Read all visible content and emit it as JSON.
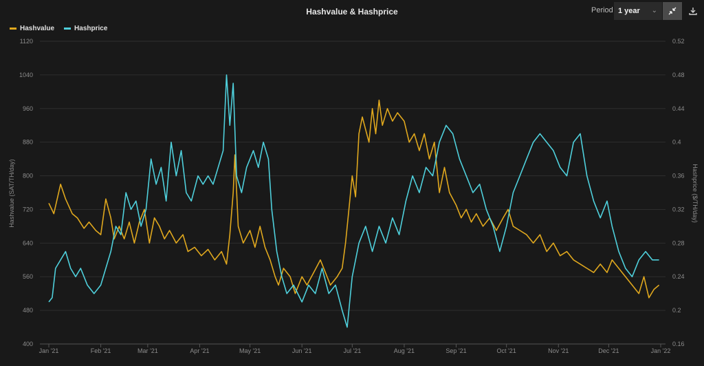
{
  "header": {
    "title": "Hashvalue & Hashprice",
    "period_label": "Period",
    "period_value": "1 year"
  },
  "icons": {
    "fit": "collapse-arrows-icon",
    "download": "download-icon"
  },
  "colors": {
    "hashvalue": "#e0a81e",
    "hashprice": "#4fd0dc",
    "background": "#191919",
    "grid": "#2e2e2e"
  },
  "chart_data": {
    "type": "line",
    "x_tick_labels": [
      "Jan '21",
      "Feb '21",
      "Mar '21",
      "Apr '21",
      "May '21",
      "Jun '21",
      "Jul '21",
      "Aug '21",
      "Sep '21",
      "Oct '21",
      "Nov '21",
      "Dec '21",
      "Jan '22"
    ],
    "ylabel_left": "Hashvalue (SAT/TH/day)",
    "ylabel_right": "Hashprice ($/TH/day)",
    "ylim_left": [
      400,
      1120
    ],
    "ylim_right": [
      0.16,
      0.52
    ],
    "yticks_left": [
      "400",
      "480",
      "560",
      "640",
      "720",
      "800",
      "880",
      "960",
      "1040",
      "1120"
    ],
    "yticks_right": [
      "0.16",
      "0.2",
      "0.24",
      "0.28",
      "0.32",
      "0.36",
      "0.4",
      "0.44",
      "0.48",
      "0.52"
    ],
    "legend_position": "top-left",
    "grid": true,
    "series": [
      {
        "name": "Hashvalue",
        "axis": "left",
        "points": [
          [
            "2021-01-01",
            735
          ],
          [
            "2021-01-04",
            710
          ],
          [
            "2021-01-08",
            780
          ],
          [
            "2021-01-11",
            745
          ],
          [
            "2021-01-15",
            710
          ],
          [
            "2021-01-18",
            700
          ],
          [
            "2021-01-22",
            675
          ],
          [
            "2021-01-25",
            690
          ],
          [
            "2021-01-29",
            670
          ],
          [
            "2021-02-01",
            660
          ],
          [
            "2021-02-04",
            745
          ],
          [
            "2021-02-07",
            700
          ],
          [
            "2021-02-09",
            650
          ],
          [
            "2021-02-12",
            680
          ],
          [
            "2021-02-15",
            650
          ],
          [
            "2021-02-18",
            690
          ],
          [
            "2021-02-21",
            640
          ],
          [
            "2021-02-24",
            690
          ],
          [
            "2021-02-27",
            720
          ],
          [
            "2021-03-02",
            640
          ],
          [
            "2021-03-05",
            700
          ],
          [
            "2021-03-08",
            680
          ],
          [
            "2021-03-11",
            650
          ],
          [
            "2021-03-14",
            670
          ],
          [
            "2021-03-18",
            640
          ],
          [
            "2021-03-22",
            660
          ],
          [
            "2021-03-25",
            620
          ],
          [
            "2021-03-29",
            630
          ],
          [
            "2021-04-02",
            610
          ],
          [
            "2021-04-06",
            625
          ],
          [
            "2021-04-10",
            600
          ],
          [
            "2021-04-14",
            620
          ],
          [
            "2021-04-17",
            590
          ],
          [
            "2021-04-19",
            660
          ],
          [
            "2021-04-21",
            760
          ],
          [
            "2021-04-22",
            850
          ],
          [
            "2021-04-24",
            680
          ],
          [
            "2021-04-27",
            640
          ],
          [
            "2021-05-01",
            670
          ],
          [
            "2021-05-04",
            630
          ],
          [
            "2021-05-07",
            680
          ],
          [
            "2021-05-10",
            630
          ],
          [
            "2021-05-13",
            600
          ],
          [
            "2021-05-16",
            560
          ],
          [
            "2021-05-18",
            540
          ],
          [
            "2021-05-21",
            580
          ],
          [
            "2021-05-25",
            560
          ],
          [
            "2021-05-28",
            520
          ],
          [
            "2021-06-01",
            560
          ],
          [
            "2021-06-04",
            540
          ],
          [
            "2021-06-08",
            570
          ],
          [
            "2021-06-12",
            600
          ],
          [
            "2021-06-15",
            570
          ],
          [
            "2021-06-18",
            540
          ],
          [
            "2021-06-22",
            560
          ],
          [
            "2021-06-25",
            580
          ],
          [
            "2021-06-27",
            640
          ],
          [
            "2021-06-29",
            720
          ],
          [
            "2021-07-01",
            800
          ],
          [
            "2021-07-03",
            750
          ],
          [
            "2021-07-05",
            900
          ],
          [
            "2021-07-07",
            940
          ],
          [
            "2021-07-09",
            910
          ],
          [
            "2021-07-11",
            880
          ],
          [
            "2021-07-13",
            960
          ],
          [
            "2021-07-15",
            900
          ],
          [
            "2021-07-17",
            980
          ],
          [
            "2021-07-19",
            920
          ],
          [
            "2021-07-22",
            960
          ],
          [
            "2021-07-25",
            930
          ],
          [
            "2021-07-28",
            950
          ],
          [
            "2021-08-01",
            930
          ],
          [
            "2021-08-04",
            880
          ],
          [
            "2021-08-07",
            900
          ],
          [
            "2021-08-10",
            860
          ],
          [
            "2021-08-13",
            900
          ],
          [
            "2021-08-16",
            840
          ],
          [
            "2021-08-19",
            880
          ],
          [
            "2021-08-22",
            760
          ],
          [
            "2021-08-25",
            820
          ],
          [
            "2021-08-28",
            760
          ],
          [
            "2021-09-01",
            730
          ],
          [
            "2021-09-04",
            700
          ],
          [
            "2021-09-07",
            720
          ],
          [
            "2021-09-10",
            690
          ],
          [
            "2021-09-13",
            710
          ],
          [
            "2021-09-17",
            680
          ],
          [
            "2021-09-21",
            700
          ],
          [
            "2021-09-25",
            670
          ],
          [
            "2021-09-29",
            700
          ],
          [
            "2021-10-02",
            720
          ],
          [
            "2021-10-05",
            680
          ],
          [
            "2021-10-09",
            670
          ],
          [
            "2021-10-13",
            660
          ],
          [
            "2021-10-17",
            640
          ],
          [
            "2021-10-21",
            660
          ],
          [
            "2021-10-25",
            620
          ],
          [
            "2021-10-29",
            640
          ],
          [
            "2021-11-02",
            610
          ],
          [
            "2021-11-06",
            620
          ],
          [
            "2021-11-10",
            600
          ],
          [
            "2021-11-14",
            590
          ],
          [
            "2021-11-18",
            580
          ],
          [
            "2021-11-22",
            570
          ],
          [
            "2021-11-26",
            590
          ],
          [
            "2021-11-30",
            570
          ],
          [
            "2021-12-03",
            600
          ],
          [
            "2021-12-07",
            580
          ],
          [
            "2021-12-11",
            560
          ],
          [
            "2021-12-15",
            540
          ],
          [
            "2021-12-19",
            520
          ],
          [
            "2021-12-22",
            560
          ],
          [
            "2021-12-25",
            510
          ],
          [
            "2021-12-28",
            530
          ],
          [
            "2021-12-31",
            540
          ]
        ]
      },
      {
        "name": "Hashprice",
        "axis": "right",
        "points": [
          [
            "2021-01-01",
            0.21
          ],
          [
            "2021-01-03",
            0.215
          ],
          [
            "2021-01-05",
            0.25
          ],
          [
            "2021-01-08",
            0.26
          ],
          [
            "2021-01-11",
            0.27
          ],
          [
            "2021-01-14",
            0.25
          ],
          [
            "2021-01-17",
            0.24
          ],
          [
            "2021-01-20",
            0.25
          ],
          [
            "2021-01-24",
            0.23
          ],
          [
            "2021-01-28",
            0.22
          ],
          [
            "2021-02-01",
            0.23
          ],
          [
            "2021-02-04",
            0.25
          ],
          [
            "2021-02-07",
            0.27
          ],
          [
            "2021-02-10",
            0.3
          ],
          [
            "2021-02-13",
            0.29
          ],
          [
            "2021-02-16",
            0.34
          ],
          [
            "2021-02-19",
            0.32
          ],
          [
            "2021-02-22",
            0.33
          ],
          [
            "2021-02-25",
            0.3
          ],
          [
            "2021-02-28",
            0.32
          ],
          [
            "2021-03-03",
            0.38
          ],
          [
            "2021-03-06",
            0.35
          ],
          [
            "2021-03-09",
            0.37
          ],
          [
            "2021-03-12",
            0.33
          ],
          [
            "2021-03-15",
            0.4
          ],
          [
            "2021-03-18",
            0.36
          ],
          [
            "2021-03-21",
            0.39
          ],
          [
            "2021-03-24",
            0.34
          ],
          [
            "2021-03-27",
            0.33
          ],
          [
            "2021-03-31",
            0.36
          ],
          [
            "2021-04-03",
            0.35
          ],
          [
            "2021-04-06",
            0.36
          ],
          [
            "2021-04-09",
            0.35
          ],
          [
            "2021-04-12",
            0.37
          ],
          [
            "2021-04-15",
            0.39
          ],
          [
            "2021-04-17",
            0.48
          ],
          [
            "2021-04-19",
            0.42
          ],
          [
            "2021-04-21",
            0.47
          ],
          [
            "2021-04-23",
            0.36
          ],
          [
            "2021-04-26",
            0.34
          ],
          [
            "2021-04-29",
            0.37
          ],
          [
            "2021-05-03",
            0.39
          ],
          [
            "2021-05-06",
            0.37
          ],
          [
            "2021-05-09",
            0.4
          ],
          [
            "2021-05-12",
            0.38
          ],
          [
            "2021-05-14",
            0.32
          ],
          [
            "2021-05-17",
            0.27
          ],
          [
            "2021-05-20",
            0.24
          ],
          [
            "2021-05-23",
            0.22
          ],
          [
            "2021-05-27",
            0.23
          ],
          [
            "2021-06-01",
            0.21
          ],
          [
            "2021-06-05",
            0.23
          ],
          [
            "2021-06-09",
            0.22
          ],
          [
            "2021-06-13",
            0.25
          ],
          [
            "2021-06-17",
            0.22
          ],
          [
            "2021-06-21",
            0.23
          ],
          [
            "2021-06-25",
            0.2
          ],
          [
            "2021-06-28",
            0.18
          ],
          [
            "2021-07-01",
            0.24
          ],
          [
            "2021-07-05",
            0.28
          ],
          [
            "2021-07-09",
            0.3
          ],
          [
            "2021-07-13",
            0.27
          ],
          [
            "2021-07-17",
            0.3
          ],
          [
            "2021-07-21",
            0.28
          ],
          [
            "2021-07-25",
            0.31
          ],
          [
            "2021-07-29",
            0.29
          ],
          [
            "2021-08-02",
            0.33
          ],
          [
            "2021-08-06",
            0.36
          ],
          [
            "2021-08-10",
            0.34
          ],
          [
            "2021-08-14",
            0.37
          ],
          [
            "2021-08-18",
            0.36
          ],
          [
            "2021-08-22",
            0.4
          ],
          [
            "2021-08-26",
            0.42
          ],
          [
            "2021-08-30",
            0.41
          ],
          [
            "2021-09-03",
            0.38
          ],
          [
            "2021-09-07",
            0.36
          ],
          [
            "2021-09-11",
            0.34
          ],
          [
            "2021-09-15",
            0.35
          ],
          [
            "2021-09-19",
            0.32
          ],
          [
            "2021-09-23",
            0.3
          ],
          [
            "2021-09-27",
            0.27
          ],
          [
            "2021-10-01",
            0.3
          ],
          [
            "2021-10-05",
            0.34
          ],
          [
            "2021-10-09",
            0.36
          ],
          [
            "2021-10-13",
            0.38
          ],
          [
            "2021-10-17",
            0.4
          ],
          [
            "2021-10-21",
            0.41
          ],
          [
            "2021-10-25",
            0.4
          ],
          [
            "2021-10-29",
            0.39
          ],
          [
            "2021-11-02",
            0.37
          ],
          [
            "2021-11-06",
            0.36
          ],
          [
            "2021-11-10",
            0.4
          ],
          [
            "2021-11-14",
            0.41
          ],
          [
            "2021-11-18",
            0.36
          ],
          [
            "2021-11-22",
            0.33
          ],
          [
            "2021-11-26",
            0.31
          ],
          [
            "2021-11-30",
            0.33
          ],
          [
            "2021-12-03",
            0.3
          ],
          [
            "2021-12-07",
            0.27
          ],
          [
            "2021-12-11",
            0.25
          ],
          [
            "2021-12-15",
            0.24
          ],
          [
            "2021-12-19",
            0.26
          ],
          [
            "2021-12-23",
            0.27
          ],
          [
            "2021-12-27",
            0.26
          ],
          [
            "2021-12-31",
            0.26
          ]
        ]
      }
    ]
  }
}
